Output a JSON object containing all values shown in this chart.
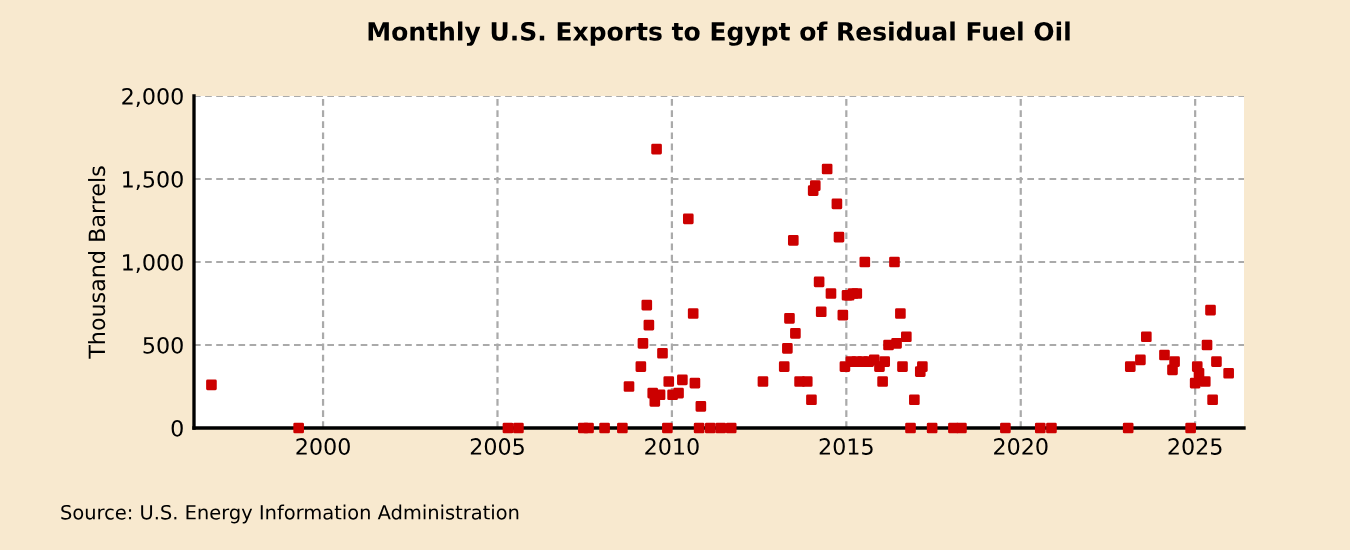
{
  "chart_data": {
    "type": "scatter",
    "title": "Monthly U.S. Exports to Egypt of Residual Fuel Oil",
    "ylabel": "Thousand Barrels",
    "annotations": [
      "Source: U.S. Energy Information Administration"
    ],
    "x": [
      1996.8,
      1999.3,
      2005.3,
      2005.6,
      2007.46,
      2007.61,
      2008.07,
      2008.58,
      2008.77,
      2009.11,
      2009.17,
      2009.28,
      2009.34,
      2009.45,
      2009.51,
      2009.56,
      2009.66,
      2009.73,
      2009.87,
      2009.91,
      2010.02,
      2010.19,
      2010.3,
      2010.47,
      2010.61,
      2010.66,
      2010.78,
      2010.83,
      2011.1,
      2011.4,
      2011.7,
      2012.61,
      2013.22,
      2013.31,
      2013.37,
      2013.48,
      2013.54,
      2013.66,
      2013.88,
      2014.0,
      2014.05,
      2014.11,
      2014.22,
      2014.28,
      2014.45,
      2014.56,
      2014.73,
      2014.79,
      2014.9,
      2014.96,
      2015.02,
      2015.08,
      2015.19,
      2015.3,
      2015.13,
      2015.3,
      2015.47,
      2015.53,
      2015.64,
      2015.8,
      2015.95,
      2016.04,
      2016.1,
      2016.21,
      2016.38,
      2016.44,
      2016.55,
      2016.61,
      2016.72,
      2016.84,
      2016.95,
      2017.12,
      2017.18,
      2017.46,
      2018.07,
      2018.3,
      2019.56,
      2020.56,
      2020.88,
      2023.08,
      2024.87,
      2023.14,
      2023.43,
      2023.6,
      2024.12,
      2024.35,
      2024.41,
      2025.06,
      2025.11,
      2025.0,
      2025.29,
      2025.34,
      2025.44,
      2025.5,
      2025.61,
      2025.96
    ],
    "series": [
      {
        "color": "#cc0000",
        "values": [
          260,
          0,
          0,
          0,
          0,
          0,
          0,
          0,
          250,
          370,
          510,
          740,
          620,
          210,
          160,
          1680,
          200,
          450,
          0,
          280,
          200,
          210,
          290,
          1260,
          690,
          270,
          0,
          130,
          0,
          0,
          0,
          280,
          370,
          480,
          660,
          1130,
          570,
          280,
          280,
          170,
          1430,
          1460,
          880,
          700,
          1560,
          810,
          1350,
          1150,
          680,
          370,
          800,
          800,
          810,
          810,
          400,
          400,
          400,
          1000,
          400,
          410,
          370,
          280,
          400,
          500,
          1000,
          510,
          690,
          370,
          550,
          0,
          170,
          340,
          370,
          0,
          0,
          0,
          0,
          0,
          0,
          0,
          0,
          370,
          410,
          550,
          440,
          350,
          400,
          370,
          330,
          270,
          280,
          500,
          710,
          170,
          400,
          330
        ]
      }
    ],
    "xlim": [
      1996.3,
      2026.4
    ],
    "xticks": [
      2000,
      2005,
      2010,
      2015,
      2020,
      2025
    ],
    "ylim": [
      0,
      2000
    ],
    "yticks": [
      {
        "value": 0,
        "label": "0"
      },
      {
        "value": 500,
        "label": "500"
      },
      {
        "value": 1000,
        "label": "1,000"
      },
      {
        "value": 1500,
        "label": "1,500"
      },
      {
        "value": 2000,
        "label": "2,000"
      }
    ],
    "grid": true,
    "marker": "square"
  }
}
